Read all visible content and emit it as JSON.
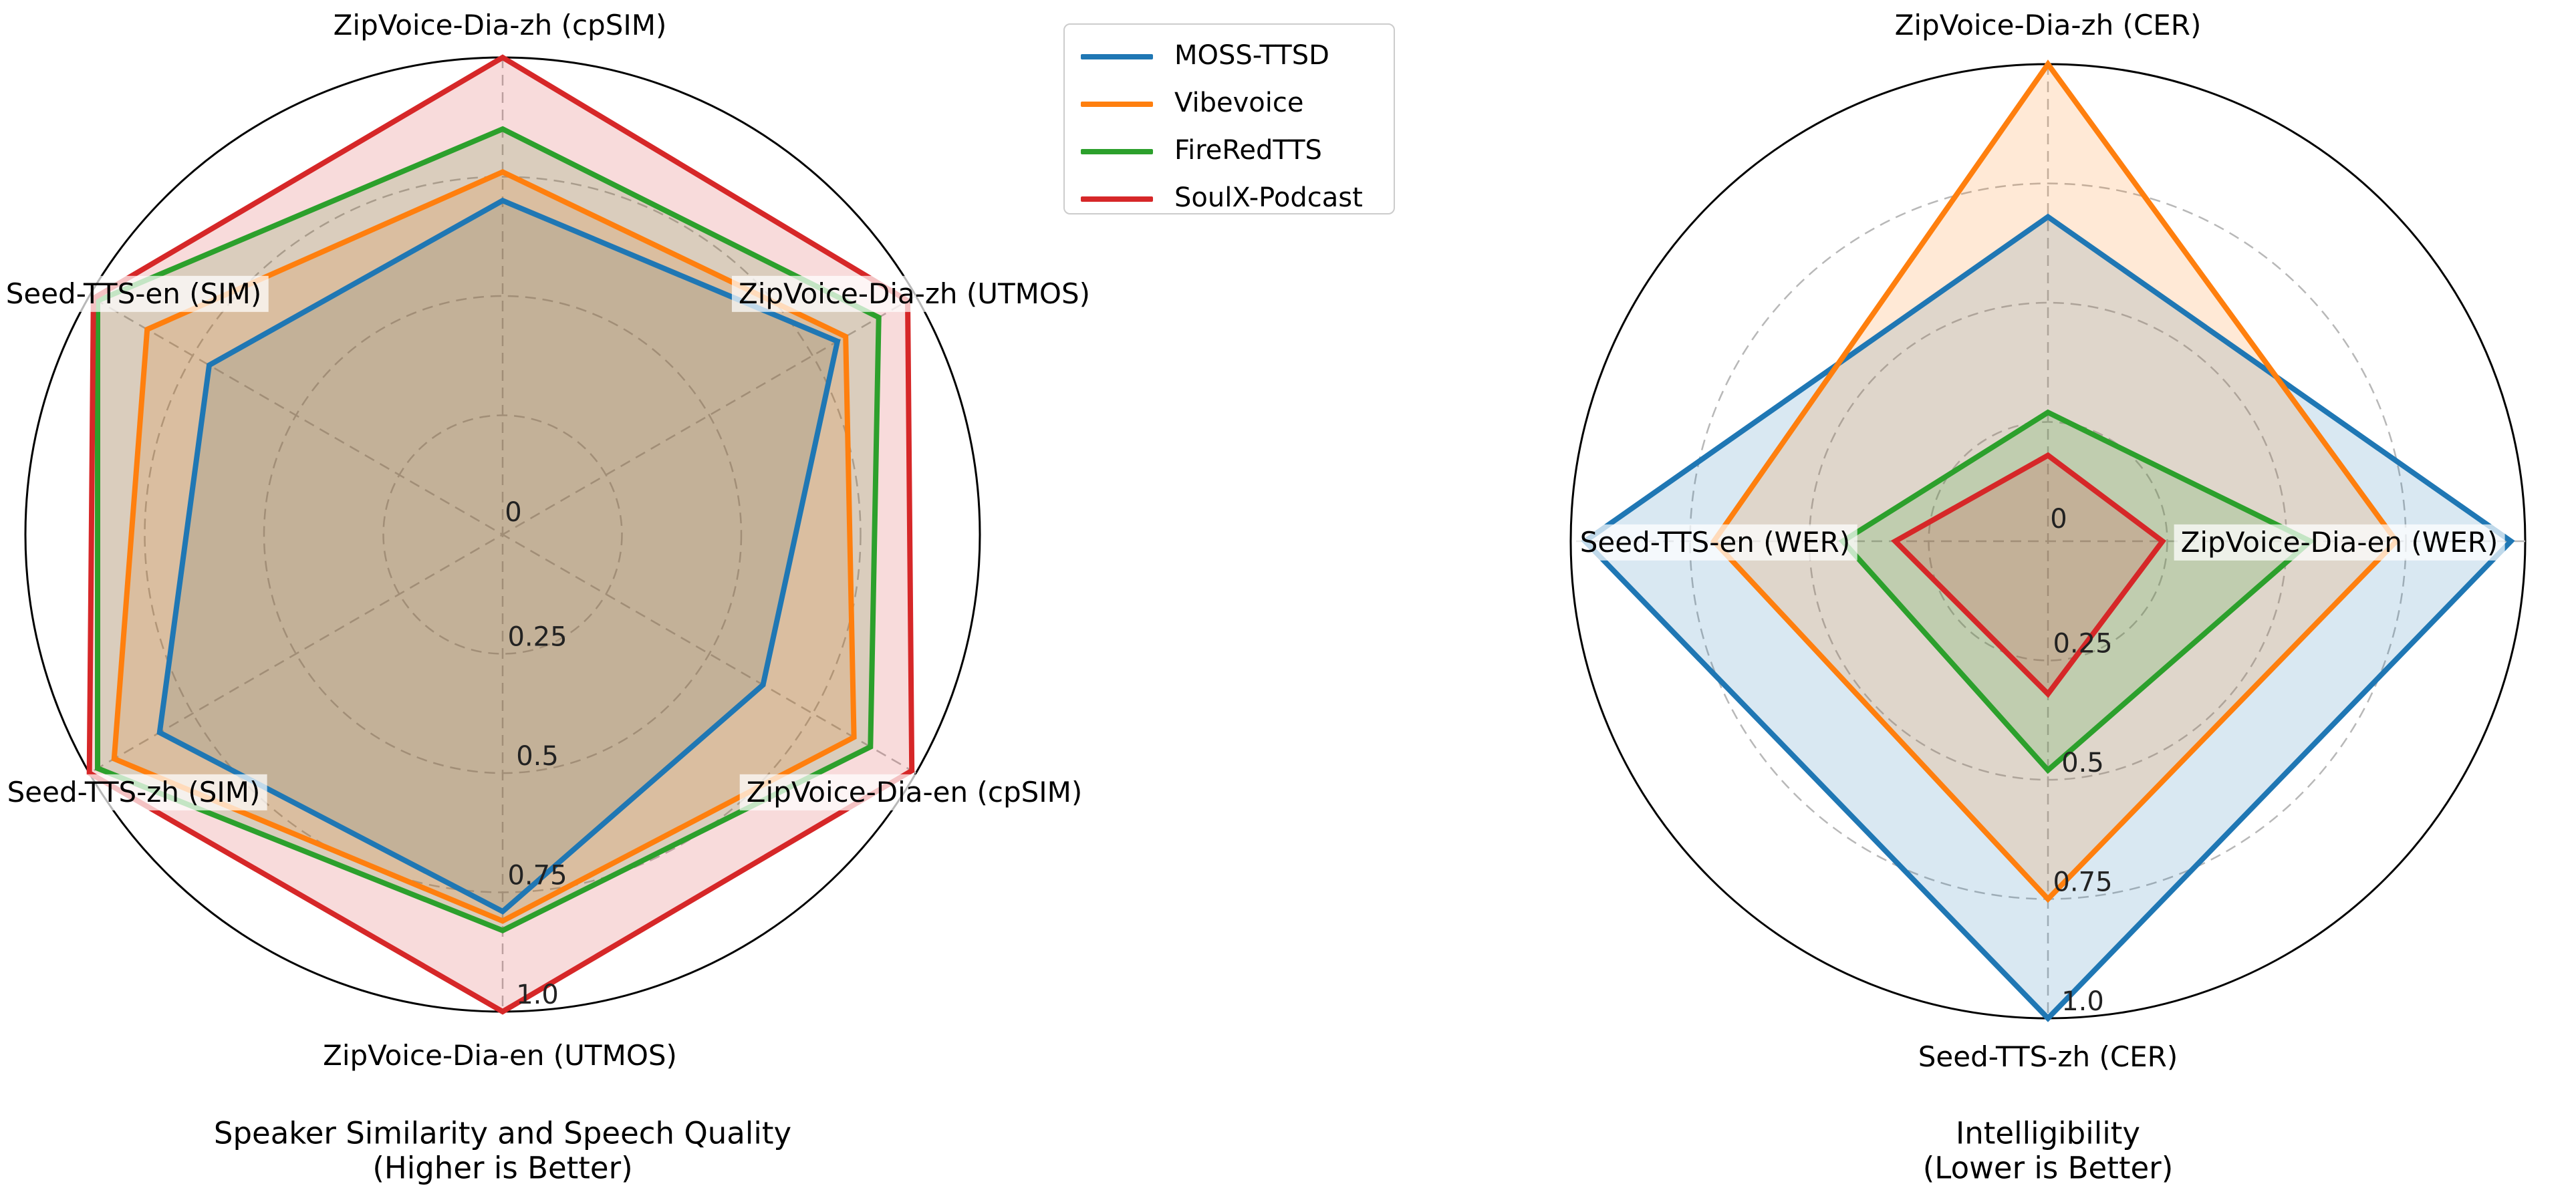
{
  "legend": {
    "items": [
      {
        "label": "MOSS-TTSD",
        "color": "#1f77b4"
      },
      {
        "label": "Vibevoice",
        "color": "#ff7f0e"
      },
      {
        "label": "FireRedTTS",
        "color": "#2ca02c"
      },
      {
        "label": "SoulX-Podcast",
        "color": "#d62728"
      }
    ]
  },
  "chart_data": [
    {
      "type": "radar",
      "title": "Speaker Similarity and Speech Quality",
      "subtitle": "(Higher is Better)",
      "axis_range": [
        0,
        1.0
      ],
      "grid": "dashed circles at 0.25 steps",
      "legend_position": "top-center-between-charts",
      "tick_labels": [
        "0",
        "0.25",
        "0.5",
        "0.75",
        "1.0"
      ],
      "ticks": [
        0,
        0.25,
        0.5,
        0.75,
        1.0
      ],
      "categories": [
        "ZipVoice-Dia-zh (cpSIM)",
        "ZipVoice-Dia-zh (UTMOS)",
        "ZipVoice-Dia-en (cpSIM)",
        "ZipVoice-Dia-en (UTMOS)",
        "Seed-TTS-zh (SIM)",
        "Seed-TTS-en (SIM)"
      ],
      "series": [
        {
          "name": "MOSS-TTSD",
          "values": [
            0.7,
            0.81,
            0.63,
            0.79,
            0.83,
            0.71
          ]
        },
        {
          "name": "Vibevoice",
          "values": [
            0.76,
            0.83,
            0.85,
            0.81,
            0.94,
            0.86
          ]
        },
        {
          "name": "FireRedTTS",
          "values": [
            0.85,
            0.91,
            0.89,
            0.83,
            0.98,
            0.98
          ]
        },
        {
          "name": "SoulX-Podcast",
          "values": [
            1.0,
            0.98,
            0.99,
            1.0,
            1.0,
            0.99
          ]
        }
      ]
    },
    {
      "type": "radar",
      "title": "Intelligibility",
      "subtitle": "(Lower is Better)",
      "axis_range": [
        0,
        1.0
      ],
      "grid": "dashed circles at 0.25 steps",
      "tick_labels": [
        "0",
        "0.25",
        "0.5",
        "0.75",
        "1.0"
      ],
      "ticks": [
        0,
        0.25,
        0.5,
        0.75,
        1.0
      ],
      "categories": [
        "ZipVoice-Dia-zh (CER)",
        "ZipVoice-Dia-en (WER)",
        "Seed-TTS-zh (CER)",
        "Seed-TTS-en (WER)"
      ],
      "series": [
        {
          "name": "MOSS-TTSD",
          "values": [
            0.68,
            0.97,
            1.0,
            0.97
          ]
        },
        {
          "name": "Vibevoice",
          "values": [
            1.0,
            0.73,
            0.75,
            0.7
          ]
        },
        {
          "name": "FireRedTTS",
          "values": [
            0.27,
            0.55,
            0.48,
            0.43
          ]
        },
        {
          "name": "SoulX-Podcast",
          "values": [
            0.18,
            0.24,
            0.32,
            0.32
          ]
        }
      ]
    }
  ],
  "style": {
    "series_colors": [
      "#1f77b4",
      "#ff7f0e",
      "#2ca02c",
      "#d62728"
    ],
    "fill_opacity": 0.17,
    "line_width": 8,
    "outer_circle_color": "#000000",
    "grid_color": "#b8b8b8",
    "tick_label_color": "#222222"
  }
}
